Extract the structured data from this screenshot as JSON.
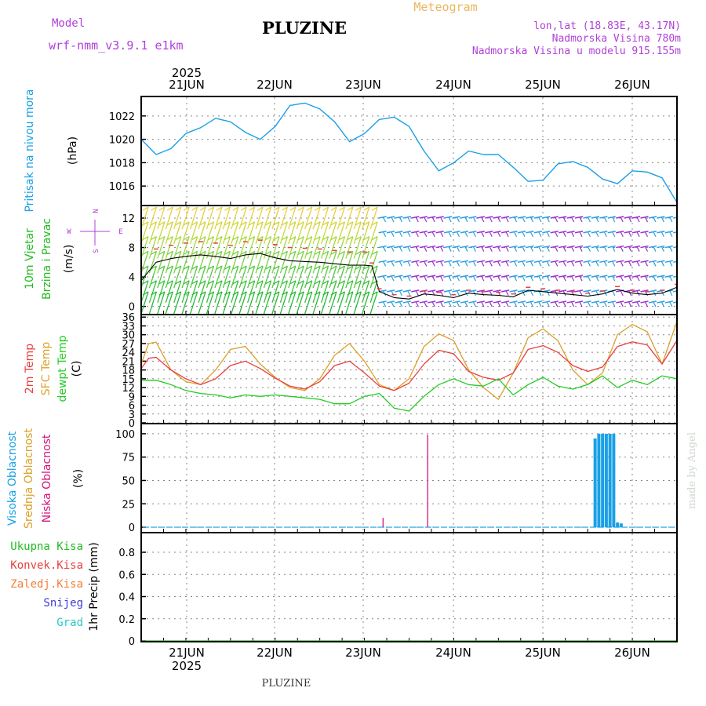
{
  "header": {
    "model_label": "Model",
    "model_name": "wrf-nmm_v3.9.1 e1km",
    "title": "PLUZINE",
    "subtitle": "Meteogram",
    "coords": "lon,lat (18.83E, 43.17N)",
    "elevation": "Nadmorska Visina 780m",
    "model_elevation": "Nadmorska Visina u modelu 915.155m",
    "footer_title": "PLUZINE",
    "watermark": "made by Angel"
  },
  "colors": {
    "pressure": "#1aa0e6",
    "wind_label": "#22bb22",
    "temp2m": "#e84040",
    "sfc": "#dca028",
    "dewpt": "#22cc22",
    "high_cloud": "#1aa0e6",
    "mid_cloud": "#dca028",
    "low_cloud": "#d4147a",
    "purple": "#b040d8"
  },
  "time_axis": {
    "year": "2025",
    "days": [
      "21JUN",
      "22JUN",
      "23JUN",
      "24JUN",
      "25JUN",
      "26JUN"
    ]
  },
  "chart_data": [
    {
      "type": "line",
      "panel": "pressure",
      "ylabel_lines": [
        "Pritisak na nivou mora",
        "(hPa)"
      ],
      "yticks": [
        "1022",
        "1020",
        "1018",
        "1016"
      ],
      "ylim": [
        1014.4,
        1023.6
      ],
      "x_unit": "hours from 20 Jun 12:00",
      "series": [
        {
          "name": "Pritisak na nivou mora",
          "x": [
            0,
            4,
            8,
            12,
            16,
            20,
            24,
            28,
            32,
            36,
            40,
            44,
            48,
            52,
            56,
            60,
            64,
            68,
            72,
            76,
            80,
            84,
            88,
            92,
            96,
            100,
            104,
            108,
            112,
            116,
            120,
            124,
            128,
            132,
            136,
            140,
            144
          ],
          "values": [
            1020,
            1018.7,
            1019.2,
            1020.5,
            1021,
            1021.8,
            1021.5,
            1020.6,
            1020,
            1021.1,
            1022.9,
            1023.1,
            1022.6,
            1021.5,
            1019.8,
            1020.5,
            1021.7,
            1021.9,
            1021.1,
            1019,
            1017.3,
            1018,
            1019,
            1018.7,
            1018.7,
            1017.6,
            1016.4,
            1016.5,
            1017.9,
            1018.1,
            1017.6,
            1016.6,
            1016.2,
            1017.3,
            1017.2,
            1016.7,
            1014.6
          ]
        }
      ]
    },
    {
      "type": "line",
      "panel": "wind",
      "ylabel_lines": [
        "10m Vjetar",
        "Brzina i Pravac",
        "(m/s)"
      ],
      "compass": [
        "N",
        "E",
        "S",
        "W"
      ],
      "yticks": [
        "12",
        "8",
        "4",
        "0"
      ],
      "ylim": [
        -1,
        13.6
      ],
      "series": [
        {
          "name": "Brzina",
          "x": [
            0,
            4,
            8,
            12,
            16,
            20,
            24,
            28,
            32,
            36,
            40,
            44,
            48,
            52,
            56,
            60,
            62,
            64,
            68,
            72,
            76,
            80,
            84,
            88,
            92,
            96,
            100,
            104,
            108,
            112,
            116,
            120,
            124,
            128,
            132,
            136,
            140,
            144
          ],
          "values": [
            3.5,
            6,
            6.5,
            6.8,
            7,
            6.8,
            6.5,
            7,
            7.2,
            6.6,
            6.2,
            6.1,
            6,
            5.8,
            5.6,
            5.6,
            5.5,
            2,
            1.2,
            1,
            1.7,
            1.5,
            1.2,
            1.8,
            1.6,
            1.5,
            1.3,
            2.2,
            2,
            1.8,
            1.6,
            1.4,
            1.7,
            2.3,
            1.8,
            1.6,
            1.8,
            2.6
          ]
        }
      ]
    },
    {
      "type": "line",
      "panel": "temperature",
      "ylabel_lines": [
        "2m Temp",
        "SFC Temp",
        "dewpt Temp",
        "(C)"
      ],
      "yticks": [
        "36",
        "33",
        "30",
        "27",
        "24",
        "21",
        "18",
        "15",
        "12",
        "9",
        "6",
        "3",
        "0"
      ],
      "ylim": [
        0,
        36.6
      ],
      "series": [
        {
          "name": "2m Temp",
          "x": [
            0,
            2,
            4,
            8,
            12,
            16,
            20,
            24,
            28,
            32,
            36,
            40,
            44,
            48,
            52,
            56,
            60,
            64,
            68,
            72,
            76,
            80,
            84,
            88,
            92,
            96,
            100,
            104,
            108,
            112,
            116,
            120,
            124,
            128,
            132,
            136,
            140,
            144
          ],
          "values": [
            18.5,
            22,
            22.3,
            18,
            15,
            13,
            15,
            19.5,
            21,
            18.5,
            15.2,
            12.5,
            11.5,
            14,
            19.5,
            21,
            17,
            12.5,
            11,
            13.5,
            20,
            24.7,
            23.5,
            17.5,
            15.5,
            14.5,
            17,
            25,
            26.3,
            24,
            19.5,
            17.5,
            19,
            26,
            27.6,
            26.5,
            20,
            28
          ]
        },
        {
          "name": "SFC Temp",
          "x": [
            0,
            2,
            4,
            8,
            12,
            16,
            20,
            24,
            28,
            32,
            36,
            40,
            44,
            48,
            52,
            56,
            60,
            64,
            68,
            72,
            76,
            80,
            84,
            88,
            92,
            96,
            100,
            104,
            108,
            112,
            116,
            120,
            124,
            128,
            132,
            136,
            140,
            144
          ],
          "values": [
            20,
            27,
            27.5,
            18,
            14,
            13,
            18,
            25,
            26,
            20,
            15.5,
            12,
            11,
            15,
            23,
            27,
            21,
            13,
            11,
            15,
            26,
            30.3,
            28,
            18,
            12,
            8,
            17,
            29,
            32,
            28,
            18,
            13,
            17,
            30,
            33.5,
            31,
            20,
            34.5
          ]
        },
        {
          "name": "dewpt Temp",
          "x": [
            0,
            4,
            8,
            12,
            16,
            20,
            24,
            28,
            32,
            36,
            40,
            44,
            48,
            52,
            56,
            60,
            64,
            68,
            72,
            76,
            80,
            84,
            88,
            92,
            96,
            100,
            104,
            108,
            112,
            116,
            120,
            124,
            128,
            132,
            136,
            140,
            144
          ],
          "values": [
            14.5,
            14.5,
            13,
            11,
            10,
            9.5,
            8.5,
            9.5,
            9,
            9.5,
            9,
            8.5,
            8,
            6.5,
            6.5,
            9,
            10,
            5,
            4,
            9,
            13,
            15,
            13,
            12.5,
            15,
            9.5,
            13,
            15.5,
            12.5,
            11.5,
            13,
            16,
            12,
            14.5,
            13,
            16,
            15
          ]
        }
      ]
    },
    {
      "type": "bar",
      "panel": "cloud",
      "ylabel_lines": [
        "Visoka Oblacnost",
        "Srednja Oblacnost",
        "Niska Oblacnost",
        "(%)"
      ],
      "yticks": [
        "100",
        "75",
        "50",
        "25",
        "0"
      ],
      "ylim": [
        -5,
        110
      ],
      "series": [
        {
          "name": "Visoka Oblacnost",
          "x": [
            122,
            123,
            124,
            125,
            126,
            127,
            128,
            129
          ],
          "values": [
            95,
            100,
            100,
            100,
            100,
            100,
            5,
            4
          ]
        },
        {
          "name": "Niska Oblacnost",
          "x": [
            65,
            77
          ],
          "values": [
            10,
            99
          ]
        }
      ]
    },
    {
      "type": "line",
      "panel": "precip",
      "ylabel": "1hr Precip (mm)",
      "legend": [
        "Ukupna Kisa",
        "Konvek.Kisa",
        "Zaledj.Kisa",
        "Snijeg",
        "Grad"
      ],
      "legend_colors": [
        "#22bb22",
        "#e84040",
        "#f0803c",
        "#3c3cd8",
        "#28c8c8"
      ],
      "yticks": [
        "0.8",
        "0.6",
        "0.4",
        "0.2",
        "0"
      ],
      "ylim": [
        0,
        0.97
      ],
      "series": [
        {
          "name": "Ukupna Kisa",
          "x": [
            0,
            144
          ],
          "values": [
            0,
            0
          ]
        }
      ]
    }
  ]
}
